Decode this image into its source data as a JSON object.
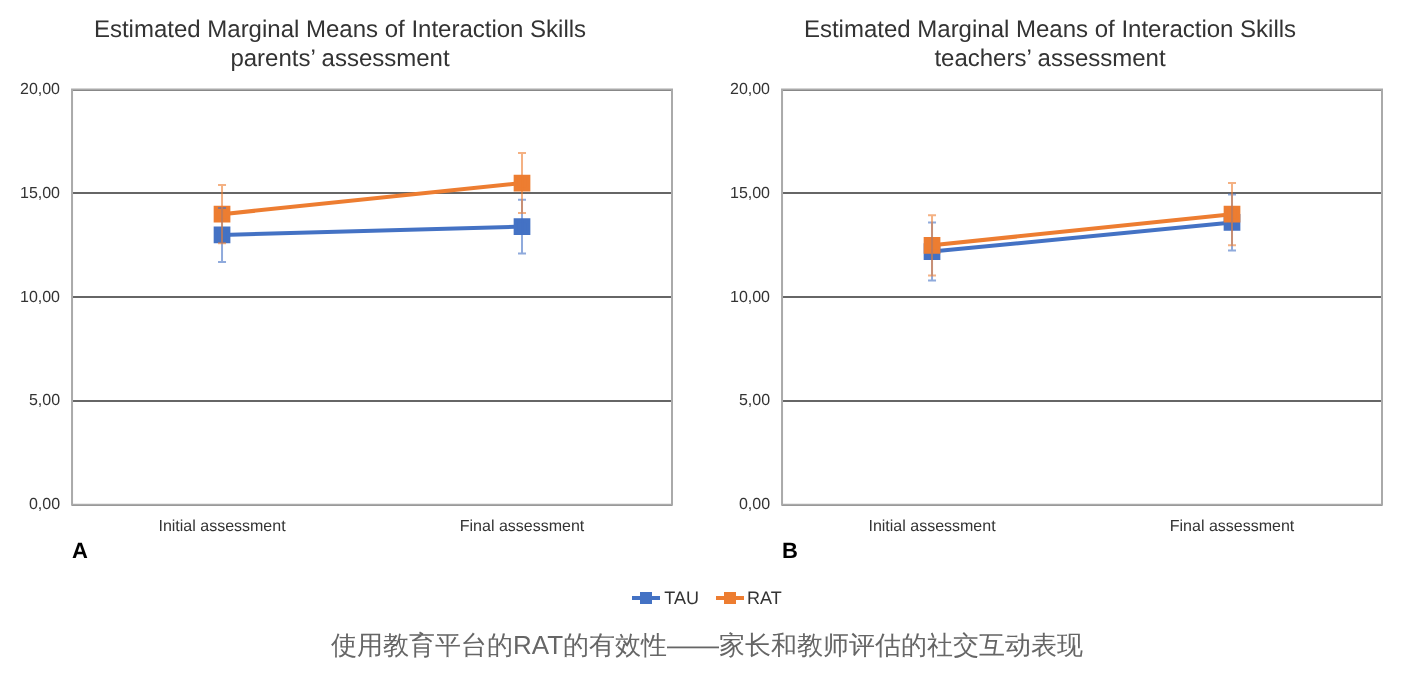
{
  "chart_data": [
    {
      "type": "line",
      "title": "Estimated Marginal Means of Interaction Skills\nparents’ assessment",
      "categories": [
        "Initial assessment",
        "Final assessment"
      ],
      "series": [
        {
          "name": "TAU",
          "color": "#4472c4",
          "values": [
            13.0,
            13.4
          ],
          "errors": [
            1.3,
            1.3
          ]
        },
        {
          "name": "RAT",
          "color": "#ed7d31",
          "values": [
            14.0,
            15.5
          ],
          "errors": [
            1.4,
            1.45
          ]
        }
      ],
      "ylim": [
        0,
        20
      ],
      "yticks": [
        {
          "value": 0,
          "label": "0,00"
        },
        {
          "value": 5,
          "label": "5,00"
        },
        {
          "value": 10,
          "label": "10,00"
        },
        {
          "value": 15,
          "label": "15,00"
        },
        {
          "value": 20,
          "label": "20,00"
        }
      ],
      "grid": "y",
      "marker": "square",
      "legend": "bottom",
      "annotations": [
        "A",
        "使用教育平台的RAT的有效性——家长和教师评估的社交互动表现"
      ]
    },
    {
      "type": "line",
      "title": "Estimated Marginal Means of Interaction Skills\nteachers’ assessment",
      "categories": [
        "Initial assessment",
        "Final assessment"
      ],
      "series": [
        {
          "name": "TAU",
          "color": "#4472c4",
          "values": [
            12.2,
            13.6
          ],
          "errors": [
            1.4,
            1.35
          ]
        },
        {
          "name": "RAT",
          "color": "#ed7d31",
          "values": [
            12.5,
            14.0
          ],
          "errors": [
            1.45,
            1.5
          ]
        }
      ],
      "ylim": [
        0,
        20
      ],
      "yticks": [
        {
          "value": 0,
          "label": "0,00"
        },
        {
          "value": 5,
          "label": "5,00"
        },
        {
          "value": 10,
          "label": "10,00"
        },
        {
          "value": 15,
          "label": "15,00"
        },
        {
          "value": 20,
          "label": "20,00"
        }
      ],
      "grid": "y",
      "marker": "square",
      "legend": "bottom",
      "annotations": [
        "B"
      ]
    }
  ]
}
